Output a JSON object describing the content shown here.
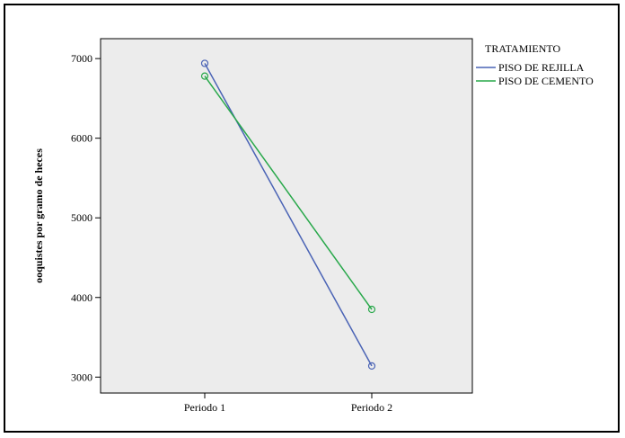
{
  "chart_data": {
    "type": "line",
    "categories": [
      "Periodo 1",
      "Periodo 2"
    ],
    "series": [
      {
        "name": "PISO DE REJILLA",
        "values": [
          6940,
          3140
        ],
        "color": "#4a63b5"
      },
      {
        "name": "PISO DE CEMENTO",
        "values": [
          6780,
          3850
        ],
        "color": "#28a84a"
      }
    ],
    "ylabel": "ooquistes por gramo de heces",
    "xlabel": "",
    "ylim": [
      2800,
      7250
    ],
    "yticks": [
      3000,
      4000,
      5000,
      6000,
      7000
    ],
    "legend_title": "TRATAMIENTO",
    "legend_position": "right",
    "plot_background": "#ececec",
    "grid": false,
    "markers": "open-circle"
  }
}
